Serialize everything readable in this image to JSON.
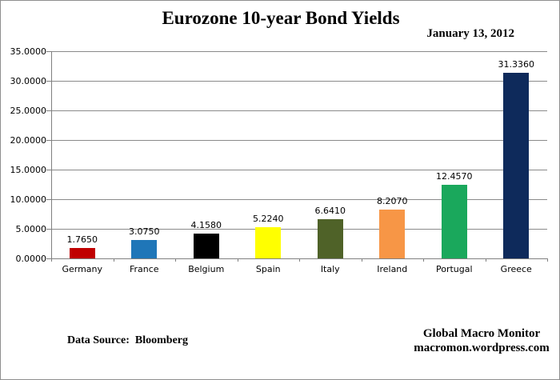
{
  "title": "Eurozone 10-year Bond Yields",
  "date_label": "January 13, 2012",
  "footer": {
    "data_source": "Data Source:  Bloomberg",
    "credit_line1": "Global Macro Monitor",
    "credit_line2": "macromon.wordpress.com"
  },
  "chart_data": {
    "type": "bar",
    "title": "Eurozone 10-year Bond Yields",
    "subtitle": "January 13, 2012",
    "categories": [
      "Germany",
      "France",
      "Belgium",
      "Spain",
      "Italy",
      "Ireland",
      "Portugal",
      "Greece"
    ],
    "values": [
      1.765,
      3.075,
      4.158,
      5.224,
      6.641,
      8.207,
      12.457,
      31.336
    ],
    "value_labels": [
      "1.7650",
      "3.0750",
      "4.1580",
      "5.2240",
      "6.6410",
      "8.2070",
      "12.4570",
      "31.3360"
    ],
    "bar_colors": [
      "#c00000",
      "#1f76b8",
      "#000000",
      "#ffff00",
      "#4f6228",
      "#f79646",
      "#1aa85c",
      "#0e2a5b"
    ],
    "xlabel": "",
    "ylabel": "",
    "ylim": [
      0,
      35
    ],
    "ytick_step": 5,
    "ytick_labels": [
      "0.0000",
      "5.0000",
      "10.0000",
      "15.0000",
      "20.0000",
      "25.0000",
      "30.0000",
      "35.0000"
    ],
    "grid": true,
    "legend": "none"
  },
  "colors": {
    "grid": "#8a8a8a",
    "axis": "#808080",
    "frame_border": "#8f8f8f",
    "text": "#000000"
  }
}
